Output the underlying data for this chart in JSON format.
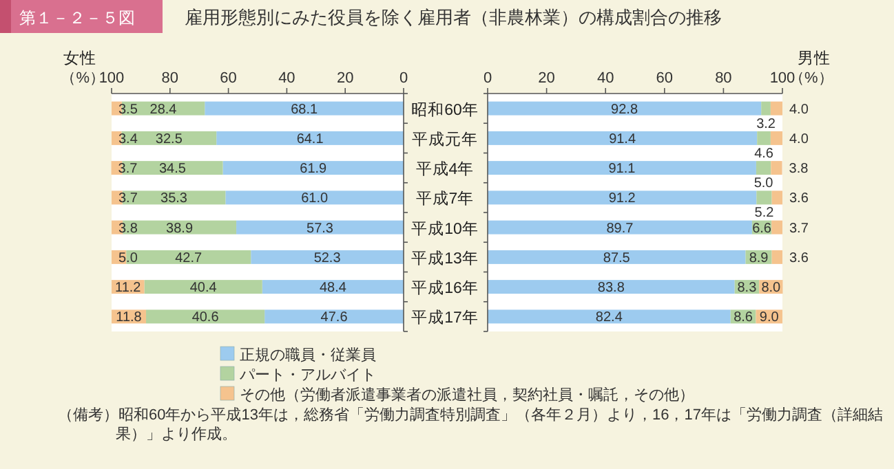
{
  "chart_data": [
    {
      "type": "bar",
      "orientation": "horizontal",
      "stacked": true,
      "title": "雇用形態別にみた役員を除く雇用者（非農林業）の構成割合の推移",
      "ylabel": "女性",
      "xlabel": "（%）",
      "annotations": [
        "第１－２－５図",
        "（備考）昭和60年から平成13年は，総務省「労働力調査特別調査」（各年２月）より，16，17年は「労働力調査（詳細結果）」より作成。"
      ],
      "categories": [
        "昭和60年",
        "平成元年",
        "平成4年",
        "平成7年",
        "平成10年",
        "平成13年",
        "平成16年",
        "平成17年"
      ],
      "xlim": [
        100,
        0
      ],
      "xticks": [
        100,
        80,
        60,
        40,
        20,
        0
      ],
      "legend": "bottom",
      "series": [
        {
          "name": "正規の職員・従業員",
          "color": "#9dcbef",
          "values": [
            68.1,
            64.1,
            61.9,
            61.0,
            57.3,
            52.3,
            48.4,
            47.6
          ],
          "value_labels": [
            "68.1",
            "64.1",
            "61.9",
            "61.0",
            "57.3",
            "52.3",
            "48.4",
            "47.6"
          ]
        },
        {
          "name": "パート・アルバイト",
          "color": "#b3d3a0",
          "values": [
            28.4,
            32.5,
            34.5,
            35.3,
            38.9,
            42.7,
            40.4,
            40.6
          ],
          "value_labels": [
            "28.4",
            "32.5",
            "34.5",
            "35.3",
            "38.9",
            "42.7",
            "40.4",
            "40.6"
          ]
        },
        {
          "name": "その他（労働者派遣事業者の派遣社員，契約社員・嘱託，その他）",
          "color": "#f5c38e",
          "values": [
            3.5,
            3.4,
            3.7,
            3.7,
            3.8,
            5.0,
            11.2,
            11.8
          ],
          "value_labels": [
            "3.5",
            "3.4",
            "3.7",
            "3.7",
            "3.8",
            "5.0",
            "11.2",
            "11.8"
          ]
        }
      ]
    },
    {
      "type": "bar",
      "orientation": "horizontal",
      "stacked": true,
      "ylabel": "男性",
      "xlabel": "（%）",
      "categories": [
        null,
        null,
        null,
        null,
        null,
        null,
        null,
        null
      ],
      "xlim": [
        0,
        100
      ],
      "xticks": [
        0,
        20,
        40,
        60,
        80,
        100
      ],
      "tick_labels": "x",
      "series": [
        {
          "color": "#9dcbef",
          "values": [
            92.8,
            91.4,
            91.1,
            91.2,
            89.7,
            87.5,
            83.8,
            82.4
          ],
          "value_labels": [
            "92.8",
            "91.4",
            "91.1",
            "91.2",
            "89.7",
            "87.5",
            "83.8",
            "82.4"
          ]
        },
        {
          "color": "#b3d3a0",
          "values": [
            3.2,
            4.6,
            5.0,
            5.2,
            6.6,
            8.9,
            8.3,
            8.6
          ],
          "value_labels": [
            "3.2",
            "4.6",
            "5.0",
            "5.2",
            "6.6",
            "8.9",
            "8.3",
            "8.6"
          ]
        },
        {
          "color": "#f5c38e",
          "values": [
            4.0,
            4.0,
            3.8,
            3.6,
            3.7,
            3.6,
            8.0,
            9.0
          ],
          "value_labels": [
            "4.0",
            "4.0",
            "3.8",
            "3.6",
            "3.7",
            "3.6",
            "8.0",
            "9.0"
          ]
        }
      ]
    }
  ]
}
